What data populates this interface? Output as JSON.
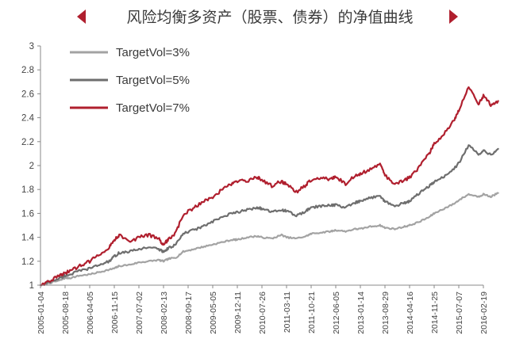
{
  "chart_data": {
    "type": "line",
    "title": "风险均衡多资产（股票、债券）的净值曲线",
    "xlabel": "",
    "ylabel": "",
    "ylim": [
      1,
      3
    ],
    "yticks": [
      "1",
      "1.2",
      "1.4",
      "1.6",
      "1.8",
      "2",
      "2.2",
      "2.4",
      "2.6",
      "2.8",
      "3"
    ],
    "xticks": [
      "2005-01-04",
      "2005-08-18",
      "2006-04-05",
      "2006-11-15",
      "2007-07-02",
      "2008-02-13",
      "2008-09-17",
      "2009-05-05",
      "2009-12-11",
      "2010-07-26",
      "2011-03-11",
      "2011-10-21",
      "2012-06-05",
      "2013-01-14",
      "2013-08-29",
      "2014-04-16",
      "2014-11-25",
      "2015-07-07",
      "2016-02-19"
    ],
    "grid": false,
    "legend_position": "top-left",
    "series": [
      {
        "name": "TargetVol=3%",
        "color": "#a3a3a3",
        "x": [
          0,
          0.4,
          0.8,
          1,
          1.2,
          1.6,
          2,
          2.4,
          2.8,
          3,
          3.2,
          3.6,
          4,
          4.4,
          4.8,
          5,
          5.2,
          5.5,
          5.8,
          6.2,
          6.6,
          7,
          7.4,
          7.8,
          8,
          8.4,
          8.8,
          9,
          9.4,
          9.8,
          10,
          10.4,
          10.8,
          11,
          11.4,
          11.8,
          12,
          12.4,
          12.8,
          13,
          13.4,
          13.8,
          14,
          14.4,
          14.8,
          15,
          15.4,
          15.8,
          16,
          16.4,
          16.8,
          17,
          17.4,
          17.8,
          18,
          18.3,
          18.6
        ],
        "values": [
          1.0,
          1.02,
          1.04,
          1.06,
          1.06,
          1.08,
          1.09,
          1.11,
          1.13,
          1.14,
          1.16,
          1.17,
          1.19,
          1.2,
          1.21,
          1.2,
          1.22,
          1.23,
          1.28,
          1.3,
          1.32,
          1.34,
          1.36,
          1.38,
          1.38,
          1.4,
          1.41,
          1.4,
          1.39,
          1.42,
          1.4,
          1.39,
          1.41,
          1.43,
          1.44,
          1.45,
          1.46,
          1.45,
          1.47,
          1.47,
          1.49,
          1.5,
          1.48,
          1.47,
          1.49,
          1.5,
          1.53,
          1.57,
          1.6,
          1.64,
          1.68,
          1.71,
          1.76,
          1.74,
          1.76,
          1.74,
          1.77
        ]
      },
      {
        "name": "TargetVol=5%",
        "color": "#6e6e6e",
        "x": [
          0,
          0.4,
          0.8,
          1,
          1.2,
          1.6,
          2,
          2.4,
          2.8,
          3,
          3.2,
          3.6,
          4,
          4.4,
          4.8,
          5,
          5.2,
          5.5,
          5.8,
          6.2,
          6.6,
          7,
          7.4,
          7.8,
          8,
          8.4,
          8.8,
          9,
          9.4,
          9.8,
          10,
          10.4,
          10.8,
          11,
          11.4,
          11.8,
          12,
          12.4,
          12.8,
          13,
          13.4,
          13.8,
          14,
          14.4,
          14.8,
          15,
          15.4,
          15.8,
          16,
          16.4,
          16.8,
          17,
          17.4,
          17.8,
          18,
          18.3,
          18.6
        ],
        "values": [
          1.0,
          1.03,
          1.06,
          1.08,
          1.09,
          1.12,
          1.14,
          1.17,
          1.2,
          1.24,
          1.27,
          1.28,
          1.3,
          1.32,
          1.3,
          1.28,
          1.31,
          1.34,
          1.43,
          1.46,
          1.49,
          1.53,
          1.57,
          1.6,
          1.61,
          1.63,
          1.65,
          1.64,
          1.61,
          1.63,
          1.62,
          1.58,
          1.62,
          1.65,
          1.66,
          1.67,
          1.67,
          1.65,
          1.69,
          1.7,
          1.73,
          1.75,
          1.7,
          1.66,
          1.69,
          1.7,
          1.77,
          1.83,
          1.86,
          1.91,
          1.97,
          2.02,
          2.17,
          2.09,
          2.13,
          2.09,
          2.14
        ]
      },
      {
        "name": "TargetVol=7%",
        "color": "#b01f2e",
        "x": [
          0,
          0.4,
          0.8,
          1,
          1.2,
          1.6,
          2,
          2.4,
          2.8,
          3,
          3.2,
          3.6,
          4,
          4.4,
          4.8,
          5,
          5.2,
          5.5,
          5.8,
          6.2,
          6.6,
          7,
          7.4,
          7.8,
          8,
          8.4,
          8.8,
          9,
          9.4,
          9.8,
          10,
          10.4,
          10.8,
          11,
          11.4,
          11.8,
          12,
          12.4,
          12.8,
          13,
          13.4,
          13.8,
          14,
          14.4,
          14.8,
          15,
          15.4,
          15.8,
          16,
          16.4,
          16.8,
          17,
          17.4,
          17.8,
          18,
          18.3,
          18.6
        ],
        "values": [
          1.0,
          1.04,
          1.08,
          1.1,
          1.12,
          1.16,
          1.2,
          1.26,
          1.32,
          1.38,
          1.42,
          1.36,
          1.4,
          1.42,
          1.39,
          1.34,
          1.38,
          1.44,
          1.59,
          1.64,
          1.7,
          1.74,
          1.8,
          1.85,
          1.87,
          1.87,
          1.9,
          1.88,
          1.83,
          1.87,
          1.84,
          1.78,
          1.84,
          1.88,
          1.89,
          1.89,
          1.9,
          1.85,
          1.92,
          1.93,
          1.97,
          2.01,
          1.92,
          1.84,
          1.88,
          1.9,
          1.99,
          2.1,
          2.18,
          2.27,
          2.38,
          2.46,
          2.66,
          2.52,
          2.58,
          2.51,
          2.54
        ]
      }
    ]
  }
}
